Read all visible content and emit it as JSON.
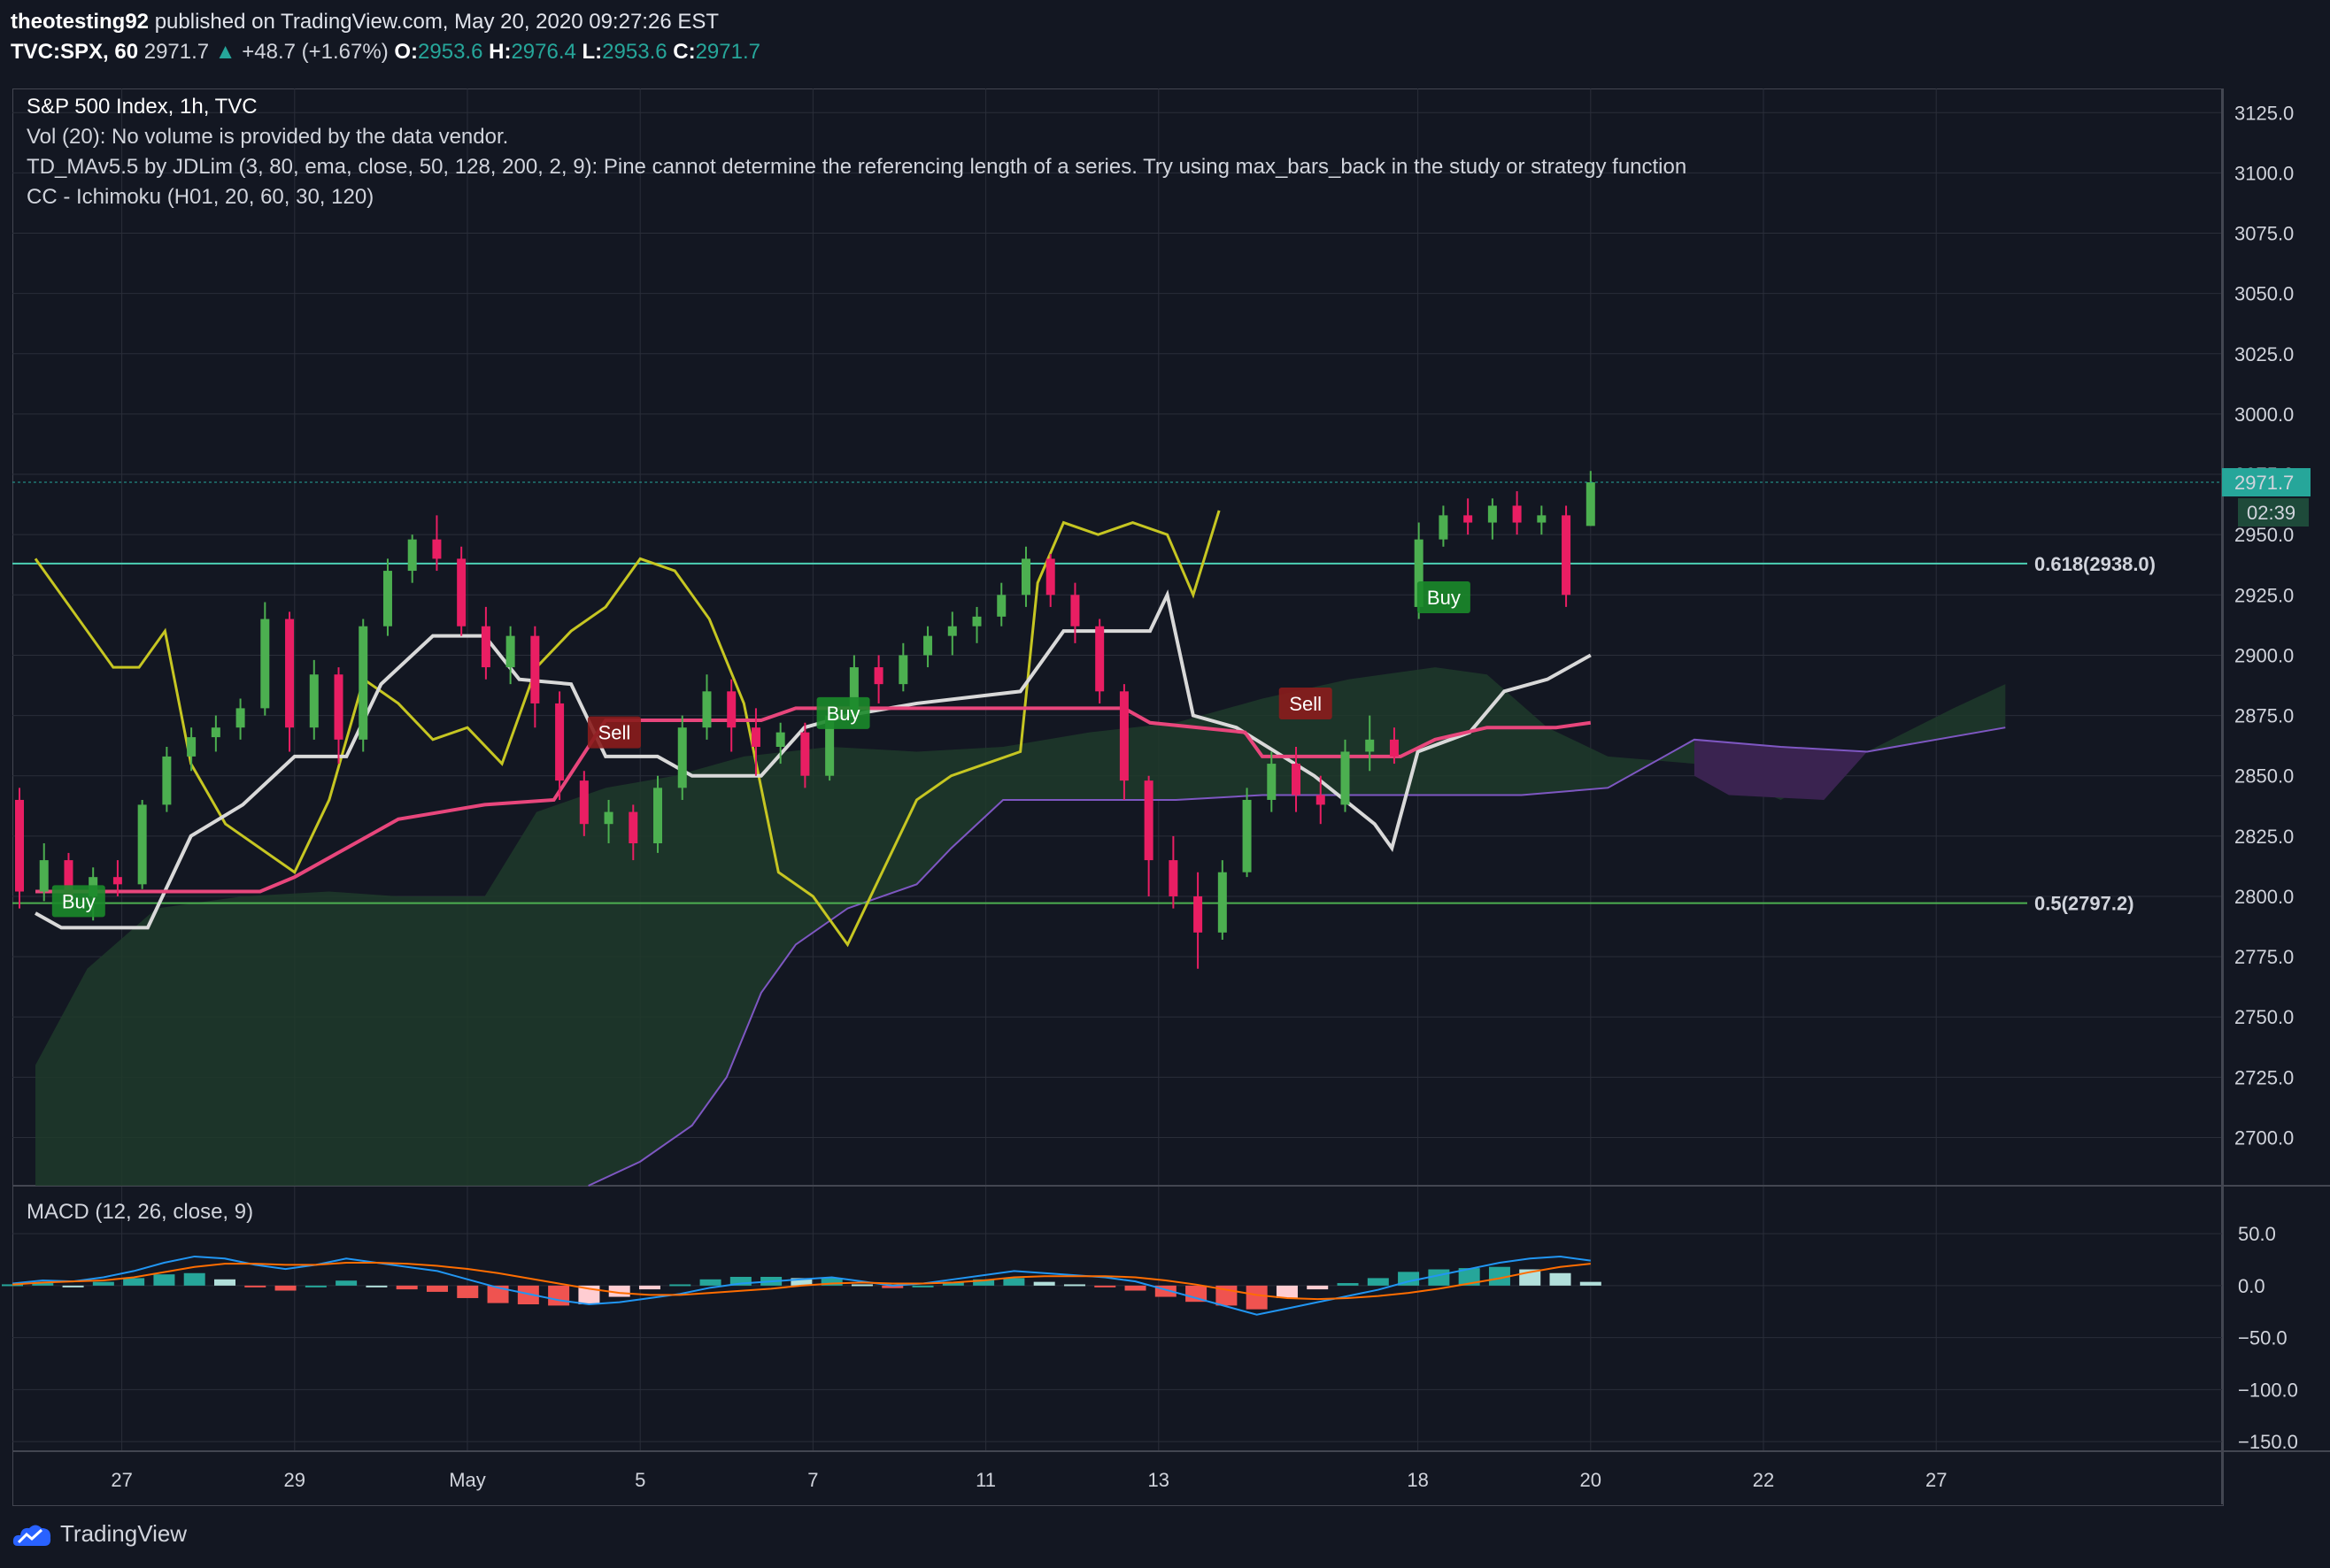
{
  "header": {
    "author": "theotesting92",
    "published": "published on TradingView.com, May 20, 2020 09:27:26 EST",
    "symbol": "TVC:SPX, 60",
    "last": "2971.7",
    "change": "+48.7 (+1.67%)",
    "o_label": "O:",
    "o": "2953.6",
    "h_label": "H:",
    "h": "2976.4",
    "l_label": "L:",
    "l": "2953.6",
    "c_label": "C:",
    "c": "2971.7"
  },
  "legend": {
    "title": "S&P 500 Index, 1h, TVC",
    "vol": "Vol (20): No volume is provided by the data vendor.",
    "td": "TD_MAv5.5 by JDLim (3, 80, ema, close, 50, 128, 200, 2, 9): Pine cannot determine the referencing length of a series. Try using max_bars_back in the study or strategy function",
    "cc": "CC - Ichimoku (H01, 20, 60, 30, 120)",
    "macd": "MACD (12, 26, close, 9)"
  },
  "branding": {
    "logo": "TradingView"
  },
  "colors": {
    "background": "#131722",
    "up": "#26a69a",
    "down": "#ef5350",
    "bull_candle": "#4caf50",
    "bear_candle": "#e91e63",
    "yellow_line": "#c6c622",
    "white_line": "#d9d9d9",
    "pink_line": "#e8467c",
    "cloud_green": "#1f3a2a",
    "cloud_purple": "#3a2350"
  },
  "chart_data": {
    "type": "candlestick",
    "symbol": "S&P 500 Index",
    "interval": "1h",
    "price_axis": {
      "range": [
        2680,
        3135
      ],
      "ticks": [
        "3125.0",
        "3100.0",
        "3075.0",
        "3050.0",
        "3025.0",
        "3000.0",
        "2975.0",
        "2950.0",
        "2925.0",
        "2900.0",
        "2875.0",
        "2850.0",
        "2825.0",
        "2800.0",
        "2775.0",
        "2750.0",
        "2725.0",
        "2700.0"
      ]
    },
    "time_axis": {
      "labels": [
        {
          "label": "27",
          "day": 1
        },
        {
          "label": "29",
          "day": 3
        },
        {
          "label": "May",
          "day": 5
        },
        {
          "label": "5",
          "day": 7
        },
        {
          "label": "7",
          "day": 9
        },
        {
          "label": "11",
          "day": 11
        },
        {
          "label": "13",
          "day": 13
        },
        {
          "label": "18",
          "day": 16
        },
        {
          "label": "20",
          "day": 18
        },
        {
          "label": "22",
          "day": 20
        },
        {
          "label": "27",
          "day": 22
        }
      ]
    },
    "last_price": {
      "value": 2971.7,
      "label": "2971.7",
      "countdown": "02:39"
    },
    "fib_levels": [
      {
        "label": "0.618(2938.0)",
        "value": 2938.0,
        "color": "#4dd0b4"
      },
      {
        "label": "0.5(2797.2)",
        "value": 2797.2,
        "color": "#4caf50"
      }
    ],
    "signals": [
      {
        "text": "Buy",
        "type": "buy",
        "day": 0.5,
        "price": 2798
      },
      {
        "text": "Sell",
        "type": "sell",
        "day": 6.7,
        "price": 2868
      },
      {
        "text": "Buy",
        "type": "buy",
        "day": 9.35,
        "price": 2876
      },
      {
        "text": "Sell",
        "type": "sell",
        "day": 14.7,
        "price": 2880
      },
      {
        "text": "Buy",
        "type": "buy",
        "day": 16.3,
        "price": 2924
      }
    ],
    "candles_ohlc": [
      [
        2840,
        2845,
        2795,
        2802
      ],
      [
        2802,
        2822,
        2798,
        2815
      ],
      [
        2815,
        2818,
        2795,
        2800
      ],
      [
        2800,
        2812,
        2790,
        2808
      ],
      [
        2808,
        2815,
        2800,
        2805
      ],
      [
        2805,
        2840,
        2803,
        2838
      ],
      [
        2838,
        2862,
        2835,
        2858
      ],
      [
        2858,
        2870,
        2852,
        2866
      ],
      [
        2866,
        2875,
        2860,
        2870
      ],
      [
        2870,
        2882,
        2865,
        2878
      ],
      [
        2878,
        2922,
        2875,
        2915
      ],
      [
        2915,
        2918,
        2860,
        2870
      ],
      [
        2870,
        2898,
        2865,
        2892
      ],
      [
        2892,
        2895,
        2855,
        2865
      ],
      [
        2865,
        2915,
        2860,
        2912
      ],
      [
        2912,
        2940,
        2908,
        2935
      ],
      [
        2935,
        2950,
        2930,
        2948
      ],
      [
        2948,
        2958,
        2935,
        2940
      ],
      [
        2940,
        2945,
        2908,
        2912
      ],
      [
        2912,
        2920,
        2890,
        2895
      ],
      [
        2895,
        2912,
        2888,
        2908
      ],
      [
        2908,
        2912,
        2870,
        2880
      ],
      [
        2880,
        2885,
        2840,
        2848
      ],
      [
        2848,
        2852,
        2825,
        2830
      ],
      [
        2830,
        2840,
        2822,
        2835
      ],
      [
        2835,
        2838,
        2815,
        2822
      ],
      [
        2822,
        2850,
        2818,
        2845
      ],
      [
        2845,
        2875,
        2840,
        2870
      ],
      [
        2870,
        2892,
        2865,
        2885
      ],
      [
        2885,
        2890,
        2860,
        2870
      ],
      [
        2870,
        2878,
        2850,
        2862
      ],
      [
        2862,
        2872,
        2855,
        2868
      ],
      [
        2868,
        2872,
        2845,
        2850
      ],
      [
        2850,
        2878,
        2848,
        2875
      ],
      [
        2875,
        2900,
        2872,
        2895
      ],
      [
        2895,
        2900,
        2880,
        2888
      ],
      [
        2888,
        2905,
        2885,
        2900
      ],
      [
        2900,
        2912,
        2895,
        2908
      ],
      [
        2908,
        2918,
        2900,
        2912
      ],
      [
        2912,
        2920,
        2905,
        2916
      ],
      [
        2916,
        2930,
        2912,
        2925
      ],
      [
        2925,
        2945,
        2920,
        2940
      ],
      [
        2940,
        2942,
        2920,
        2925
      ],
      [
        2925,
        2930,
        2905,
        2912
      ],
      [
        2912,
        2915,
        2880,
        2885
      ],
      [
        2885,
        2888,
        2840,
        2848
      ],
      [
        2848,
        2850,
        2800,
        2815
      ],
      [
        2815,
        2825,
        2795,
        2800
      ],
      [
        2800,
        2810,
        2770,
        2785
      ],
      [
        2785,
        2815,
        2782,
        2810
      ],
      [
        2810,
        2845,
        2808,
        2840
      ],
      [
        2840,
        2860,
        2835,
        2855
      ],
      [
        2855,
        2862,
        2835,
        2842
      ],
      [
        2842,
        2850,
        2830,
        2838
      ],
      [
        2838,
        2865,
        2835,
        2860
      ],
      [
        2860,
        2875,
        2852,
        2865
      ],
      [
        2865,
        2870,
        2855,
        2858
      ],
      [
        2920,
        2955,
        2915,
        2948
      ],
      [
        2948,
        2962,
        2945,
        2958
      ],
      [
        2958,
        2965,
        2950,
        2955
      ],
      [
        2955,
        2965,
        2948,
        2962
      ],
      [
        2962,
        2968,
        2950,
        2955
      ],
      [
        2955,
        2962,
        2950,
        2958
      ],
      [
        2958,
        2962,
        2920,
        2925
      ],
      [
        2953.6,
        2976.4,
        2953.6,
        2971.7
      ]
    ]
  },
  "macd_data": {
    "type": "line",
    "title": "MACD (12, 26, close, 9)",
    "range": [
      -155,
      62
    ],
    "ticks": [
      "50.0",
      "0.0",
      "−50.0",
      "−100.0",
      "−150.0"
    ],
    "macd": [
      2,
      5,
      4,
      8,
      14,
      22,
      28,
      26,
      20,
      16,
      20,
      26,
      22,
      18,
      14,
      6,
      -2,
      -8,
      -14,
      -18,
      -16,
      -12,
      -8,
      -2,
      2,
      4,
      6,
      8,
      4,
      0,
      2,
      6,
      10,
      14,
      12,
      10,
      8,
      4,
      -4,
      -12,
      -20,
      -28,
      -22,
      -16,
      -10,
      -4,
      4,
      10,
      16,
      22,
      26,
      28,
      24
    ],
    "signal": [
      1,
      3,
      4,
      5,
      8,
      13,
      18,
      21,
      21,
      20,
      20,
      22,
      22,
      21,
      19,
      16,
      12,
      7,
      2,
      -3,
      -7,
      -9,
      -9,
      -7,
      -5,
      -3,
      0,
      2,
      3,
      2,
      2,
      3,
      5,
      8,
      9,
      9,
      9,
      8,
      5,
      1,
      -4,
      -9,
      -12,
      -13,
      -12,
      -10,
      -7,
      -3,
      2,
      7,
      13,
      18,
      21
    ]
  }
}
